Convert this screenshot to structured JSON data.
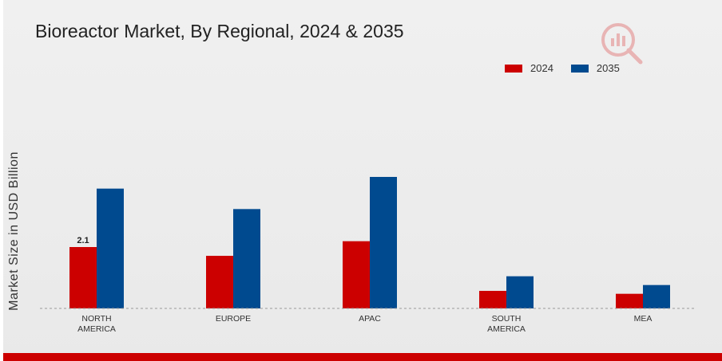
{
  "title": "Bioreactor Market, By Regional, 2024 & 2035",
  "colors": {
    "2024": "#cc0000",
    "2035": "#004a8f"
  },
  "chart_data": {
    "type": "bar",
    "title": "Bioreactor Market, By Regional, 2024 & 2035",
    "xlabel": "",
    "ylabel": "Market Size in USD Billion",
    "categories": [
      [
        "NORTH",
        "AMERICA"
      ],
      [
        "EUROPE"
      ],
      [
        "APAC"
      ],
      [
        "SOUTH",
        "AMERICA"
      ],
      [
        "MEA"
      ]
    ],
    "series": [
      {
        "name": "2024",
        "values": [
          2.1,
          1.8,
          2.3,
          0.6,
          0.5
        ]
      },
      {
        "name": "2035",
        "values": [
          4.1,
          3.4,
          4.5,
          1.1,
          0.8
        ]
      }
    ],
    "data_labels": [
      {
        "series": 0,
        "index": 0,
        "text": "2.1"
      }
    ],
    "ylim": [
      0,
      6
    ],
    "legend": "top-right",
    "grid": false
  }
}
